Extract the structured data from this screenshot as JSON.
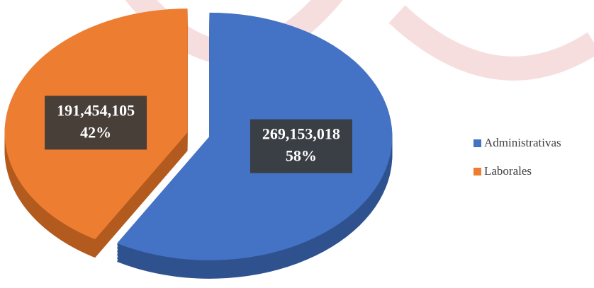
{
  "chart_data": {
    "type": "pie",
    "categories": [
      "Administrativas",
      "Laborales"
    ],
    "values": [
      269153018,
      191454105
    ],
    "value_labels": [
      "269,153,018",
      "191,454,105"
    ],
    "percent_labels": [
      "58%",
      "42%"
    ],
    "colors": [
      "#4472c4",
      "#ed7d31"
    ],
    "side_colors": [
      "#2f528f",
      "#b35a1f"
    ],
    "legend": "right"
  }
}
